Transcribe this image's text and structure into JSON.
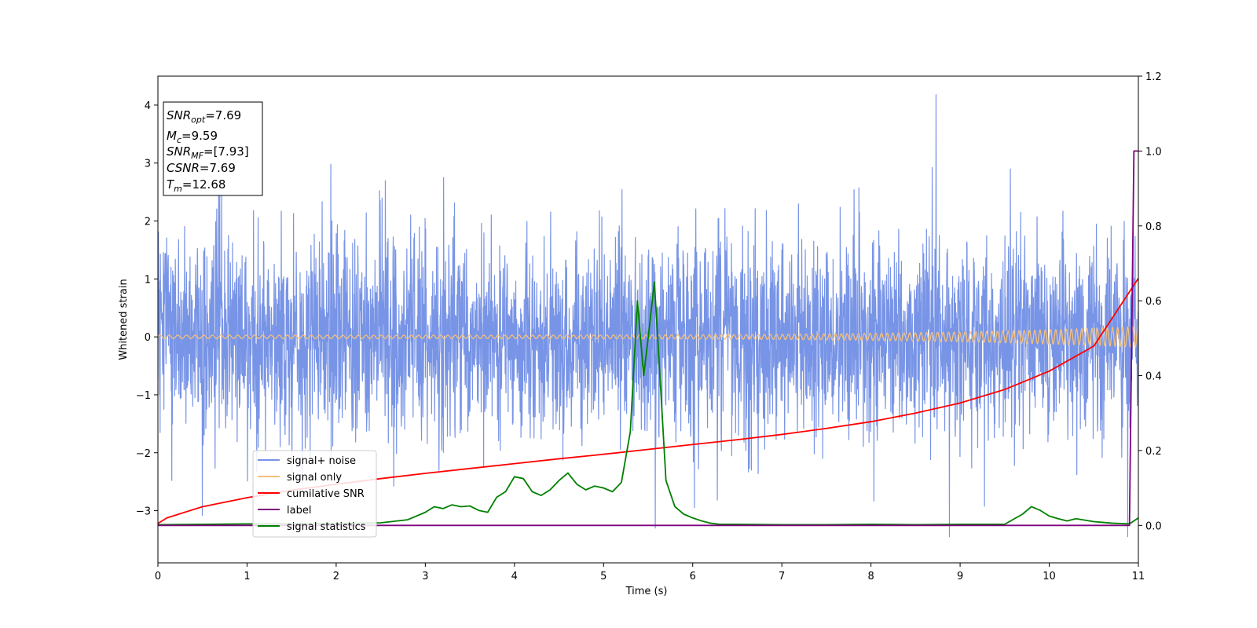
{
  "chart_data": {
    "type": "line",
    "xlabel": "Time (s)",
    "ylabel": "Whitened strain",
    "xlim": [
      0,
      11
    ],
    "ylim": [
      -3.9,
      4.5
    ],
    "y2lim": [
      -0.1,
      1.2
    ],
    "x_ticks": [
      "0",
      "1",
      "2",
      "3",
      "4",
      "5",
      "6",
      "7",
      "8",
      "9",
      "10",
      "11"
    ],
    "y_ticks": [
      "−3",
      "−2",
      "−1",
      "0",
      "1",
      "2",
      "3",
      "4"
    ],
    "y2_ticks": [
      "0.0",
      "0.2",
      "0.4",
      "0.6",
      "0.8",
      "1.0",
      "1.2"
    ],
    "grid": false,
    "legend_position": "lower-left",
    "info_box": {
      "snr_opt": {
        "base": "SNR",
        "sub": "opt",
        "value": "=7.69"
      },
      "mc": {
        "base": "M",
        "sub": "c",
        "value": "=9.59"
      },
      "snr_mf": {
        "base": "SNR",
        "sub": "MF",
        "value": "=[7.93]"
      },
      "csnr": {
        "base": "CSNR",
        "value": "=7.69"
      },
      "tm": {
        "base": "T",
        "sub": "m",
        "value": "=12.68"
      }
    },
    "series": [
      {
        "name": "signal+ noise",
        "axis": "left",
        "color": "#7894e6",
        "style": "dense noise, roughly N(0, 0.85) about 0, extremes about -3.4 to 4.2",
        "peaks": [
          [
            8.73,
            4.18
          ],
          [
            8.88,
            -3.45
          ],
          [
            1.94,
            2.98
          ],
          [
            5.58,
            -3.3
          ],
          [
            10.88,
            -3.45
          ]
        ]
      },
      {
        "name": "signal only",
        "axis": "left",
        "color": "#f5c07a",
        "style": "chirp oscillation about 0, amplitude rising from 0.03 to 0.18"
      },
      {
        "name": "cumilative SNR",
        "axis": "right",
        "color": "#ff0000",
        "x": [
          0,
          0.1,
          0.5,
          1,
          1.5,
          2,
          2.5,
          3,
          3.5,
          4,
          4.5,
          5,
          5.5,
          6,
          6.5,
          7,
          7.5,
          8,
          8.5,
          9,
          9.5,
          10,
          10.5,
          11
        ],
        "y": [
          0.005,
          0.02,
          0.05,
          0.074,
          0.094,
          0.11,
          0.125,
          0.139,
          0.152,
          0.165,
          0.178,
          0.19,
          0.203,
          0.216,
          0.229,
          0.243,
          0.259,
          0.277,
          0.3,
          0.327,
          0.363,
          0.412,
          0.479,
          0.66
        ]
      },
      {
        "name": "label",
        "axis": "right",
        "color": "#800080",
        "x": [
          0,
          10.9,
          10.95,
          11
        ],
        "y": [
          0,
          0,
          1,
          1
        ]
      },
      {
        "name": "signal statistics",
        "axis": "right",
        "color": "#008000",
        "x": [
          0,
          0.5,
          1,
          1.5,
          2,
          2.5,
          2.8,
          3,
          3.1,
          3.2,
          3.3,
          3.4,
          3.5,
          3.6,
          3.7,
          3.8,
          3.9,
          4,
          4.1,
          4.2,
          4.3,
          4.4,
          4.5,
          4.6,
          4.7,
          4.8,
          4.9,
          5,
          5.1,
          5.2,
          5.3,
          5.38,
          5.45,
          5.5,
          5.57,
          5.62,
          5.7,
          5.8,
          5.9,
          6,
          6.1,
          6.2,
          6.3,
          6.5,
          7,
          7.5,
          8,
          8.5,
          9,
          9.5,
          9.7,
          9.8,
          9.9,
          10,
          10.1,
          10.2,
          10.3,
          10.5,
          10.7,
          10.9,
          11
        ],
        "y": [
          0.002,
          0.003,
          0.004,
          0.004,
          0.005,
          0.007,
          0.015,
          0.035,
          0.05,
          0.045,
          0.055,
          0.05,
          0.052,
          0.04,
          0.035,
          0.075,
          0.09,
          0.13,
          0.125,
          0.09,
          0.08,
          0.095,
          0.12,
          0.14,
          0.11,
          0.095,
          0.105,
          0.1,
          0.09,
          0.115,
          0.25,
          0.6,
          0.4,
          0.5,
          0.65,
          0.45,
          0.12,
          0.05,
          0.03,
          0.02,
          0.012,
          0.006,
          0.003,
          0.003,
          0.002,
          0.002,
          0.003,
          0.002,
          0.003,
          0.003,
          0.03,
          0.05,
          0.04,
          0.025,
          0.018,
          0.012,
          0.018,
          0.01,
          0.006,
          0.004,
          0.02
        ]
      }
    ]
  }
}
